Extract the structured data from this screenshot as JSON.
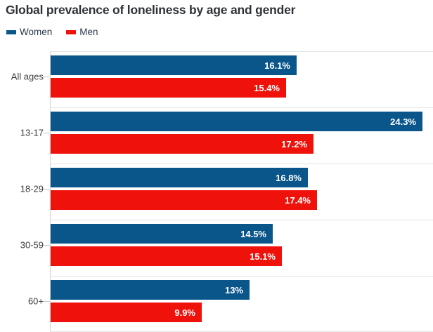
{
  "title": "Global prevalence of loneliness by age and gender",
  "chart_data": {
    "type": "bar",
    "orientation": "horizontal",
    "title": "Global prevalence of loneliness by age and gender",
    "categories": [
      "All ages",
      "13-17",
      "18-29",
      "30-59",
      "60+"
    ],
    "series": [
      {
        "name": "Women",
        "color": "#0a568b",
        "values": [
          16.1,
          24.3,
          16.8,
          14.5,
          13
        ],
        "labels": [
          "16.1%",
          "24.3%",
          "16.8%",
          "14.5%",
          "13%"
        ]
      },
      {
        "name": "Men",
        "color": "#ee120b",
        "values": [
          15.4,
          17.2,
          17.4,
          15.1,
          9.9
        ],
        "labels": [
          "15.4%",
          "17.2%",
          "17.4%",
          "15.1%",
          "9.9%"
        ]
      }
    ],
    "xlim": [
      0,
      25
    ],
    "value_suffix": "%",
    "value_labels": "inside-end",
    "grid": "group-separator-lines",
    "legend_position": "top-left",
    "axis_ticks_visible": false
  },
  "colors": {
    "women": "#0a568b",
    "men": "#ee120b",
    "title_text": "#2f3338",
    "legend_text": "#25384a",
    "category_text": "#3d3d3d",
    "gridline": "#e4e4e4",
    "axis_line": "#d4d4d4",
    "value_text": "#ffffff",
    "background": "#ffffff"
  }
}
